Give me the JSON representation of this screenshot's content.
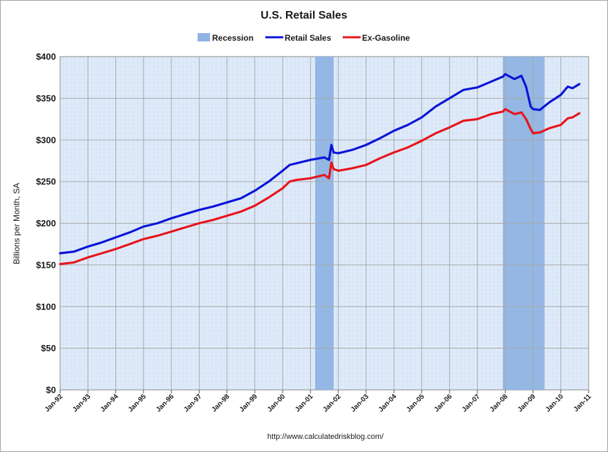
{
  "chart_data": {
    "type": "line",
    "title": "U.S. Retail Sales",
    "ylabel": "Billions per Month, SA",
    "xlabel": "",
    "source": "http://www.calculatedriskblog.com/",
    "x_range": [
      "1992-01",
      "2011-01"
    ],
    "ylim": [
      0,
      400
    ],
    "y_ticks": [
      "$0",
      "$50",
      "$100",
      "$150",
      "$200",
      "$250",
      "$300",
      "$350",
      "$400"
    ],
    "y_tick_values": [
      0,
      50,
      100,
      150,
      200,
      250,
      300,
      350,
      400
    ],
    "x_ticks": [
      "Jan-92",
      "Jan-93",
      "Jan-94",
      "Jan-95",
      "Jan-96",
      "Jan-97",
      "Jan-98",
      "Jan-99",
      "Jan-00",
      "Jan-01",
      "Jan-02",
      "Jan-03",
      "Jan-04",
      "Jan-05",
      "Jan-06",
      "Jan-07",
      "Jan-08",
      "Jan-09",
      "Jan-10",
      "Jan-11"
    ],
    "x_tick_dates": [
      "1992-01",
      "1993-01",
      "1994-01",
      "1995-01",
      "1996-01",
      "1997-01",
      "1998-01",
      "1999-01",
      "2000-01",
      "2001-01",
      "2002-01",
      "2003-01",
      "2004-01",
      "2005-01",
      "2006-01",
      "2007-01",
      "2008-01",
      "2009-01",
      "2010-01",
      "2011-01"
    ],
    "grid": true,
    "legend_position": "top-center",
    "legend": [
      {
        "label": "Recession",
        "color": "#8fb4e3",
        "kind": "band"
      },
      {
        "label": "Retail Sales",
        "color": "#0a14d8",
        "kind": "line"
      },
      {
        "label": "Ex-Gasoline",
        "color": "#e8141c",
        "kind": "line"
      }
    ],
    "recessions": [
      {
        "start": "2001-03",
        "end": "2001-11"
      },
      {
        "start": "2007-12",
        "end": "2009-06"
      }
    ],
    "series": [
      {
        "name": "Retail Sales",
        "color": "#0a14d8",
        "points": [
          [
            "1992-01",
            164
          ],
          [
            "1992-07",
            166
          ],
          [
            "1993-01",
            172
          ],
          [
            "1993-07",
            177
          ],
          [
            "1994-01",
            183
          ],
          [
            "1994-07",
            189
          ],
          [
            "1995-01",
            196
          ],
          [
            "1995-07",
            200
          ],
          [
            "1996-01",
            206
          ],
          [
            "1996-07",
            211
          ],
          [
            "1997-01",
            216
          ],
          [
            "1997-07",
            220
          ],
          [
            "1998-01",
            225
          ],
          [
            "1998-07",
            230
          ],
          [
            "1999-01",
            239
          ],
          [
            "1999-07",
            250
          ],
          [
            "2000-01",
            263
          ],
          [
            "2000-04",
            270
          ],
          [
            "2000-07",
            272
          ],
          [
            "2001-01",
            276
          ],
          [
            "2001-07",
            279
          ],
          [
            "2001-09",
            276
          ],
          [
            "2001-10",
            294
          ],
          [
            "2001-11",
            285
          ],
          [
            "2002-01",
            284
          ],
          [
            "2002-07",
            288
          ],
          [
            "2003-01",
            294
          ],
          [
            "2003-07",
            302
          ],
          [
            "2004-01",
            311
          ],
          [
            "2004-07",
            318
          ],
          [
            "2005-01",
            327
          ],
          [
            "2005-07",
            340
          ],
          [
            "2006-01",
            350
          ],
          [
            "2006-07",
            360
          ],
          [
            "2007-01",
            363
          ],
          [
            "2007-07",
            370
          ],
          [
            "2007-12",
            376
          ],
          [
            "2008-01",
            379
          ],
          [
            "2008-05",
            373
          ],
          [
            "2008-08",
            377
          ],
          [
            "2008-10",
            364
          ],
          [
            "2008-12",
            340
          ],
          [
            "2009-01",
            337
          ],
          [
            "2009-04",
            336
          ],
          [
            "2009-08",
            345
          ],
          [
            "2010-01",
            354
          ],
          [
            "2010-04",
            364
          ],
          [
            "2010-06",
            362
          ],
          [
            "2010-09",
            367
          ]
        ]
      },
      {
        "name": "Ex-Gasoline",
        "color": "#e8141c",
        "points": [
          [
            "1992-01",
            151
          ],
          [
            "1992-07",
            153
          ],
          [
            "1993-01",
            159
          ],
          [
            "1993-07",
            164
          ],
          [
            "1994-01",
            169
          ],
          [
            "1994-07",
            175
          ],
          [
            "1995-01",
            181
          ],
          [
            "1995-07",
            185
          ],
          [
            "1996-01",
            190
          ],
          [
            "1996-07",
            195
          ],
          [
            "1997-01",
            200
          ],
          [
            "1997-07",
            204
          ],
          [
            "1998-01",
            209
          ],
          [
            "1998-07",
            214
          ],
          [
            "1999-01",
            221
          ],
          [
            "1999-07",
            231
          ],
          [
            "2000-01",
            242
          ],
          [
            "2000-04",
            250
          ],
          [
            "2000-07",
            252
          ],
          [
            "2001-01",
            254
          ],
          [
            "2001-07",
            258
          ],
          [
            "2001-09",
            254
          ],
          [
            "2001-10",
            273
          ],
          [
            "2001-11",
            265
          ],
          [
            "2002-01",
            263
          ],
          [
            "2002-07",
            266
          ],
          [
            "2003-01",
            270
          ],
          [
            "2003-07",
            278
          ],
          [
            "2004-01",
            285
          ],
          [
            "2004-07",
            291
          ],
          [
            "2005-01",
            299
          ],
          [
            "2005-07",
            308
          ],
          [
            "2006-01",
            315
          ],
          [
            "2006-07",
            323
          ],
          [
            "2007-01",
            325
          ],
          [
            "2007-07",
            331
          ],
          [
            "2007-12",
            334
          ],
          [
            "2008-01",
            337
          ],
          [
            "2008-05",
            331
          ],
          [
            "2008-08",
            333
          ],
          [
            "2008-10",
            325
          ],
          [
            "2008-12",
            313
          ],
          [
            "2009-01",
            308
          ],
          [
            "2009-04",
            309
          ],
          [
            "2009-08",
            314
          ],
          [
            "2010-01",
            318
          ],
          [
            "2010-04",
            326
          ],
          [
            "2010-06",
            327
          ],
          [
            "2010-09",
            332
          ]
        ]
      }
    ]
  }
}
